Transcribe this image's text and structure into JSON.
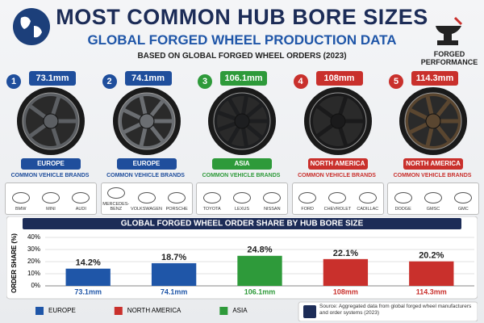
{
  "header": {
    "title": "MOST COMMON HUB BORE SIZES",
    "subtitle": "GLOBAL FORGED WHEEL PRODUCTION DATA",
    "note": "BASED ON GLOBAL FORGED WHEEL ORDERS (2023)",
    "logo": "FORGED PERFORMANCE"
  },
  "wheels": [
    {
      "rank": 1,
      "size": "73.1mm",
      "region": "EUROPE",
      "color": "#1f4e9c",
      "brands_label": "COMMON VEHICLE BRANDS",
      "brands": [
        "BMW",
        "MINI",
        "AUDI"
      ]
    },
    {
      "rank": 2,
      "size": "74.1mm",
      "region": "EUROPE",
      "color": "#1f4e9c",
      "brands_label": "COMMON VEHICLE BRANDS",
      "brands": [
        "MERCEDES-BENZ",
        "VOLKSWAGEN",
        "PORSCHE"
      ]
    },
    {
      "rank": 3,
      "size": "106.1mm",
      "region": "ASIA",
      "color": "#2e9a3a",
      "brands_label": "COMMON VEHICLE BRANDS",
      "brands": [
        "TOYOTA",
        "LEXUS",
        "NISSAN"
      ]
    },
    {
      "rank": 4,
      "size": "108mm",
      "region": "NORTH AMERICA",
      "color": "#c9302c",
      "brands_label": "COMMON VEHICLE BRANDS",
      "brands": [
        "FORD",
        "CHEVROLET",
        "CADILLAC"
      ]
    },
    {
      "rank": 5,
      "size": "114.3mm",
      "region": "NORTH AMERICA",
      "color": "#c9302c",
      "brands_label": "COMMON VEHICLE BRANDS",
      "brands": [
        "DODGE",
        "GMSC",
        "GMC"
      ]
    }
  ],
  "chart_data": {
    "type": "bar",
    "title": "GLOBAL FORGED WHEEL ORDER SHARE BY HUB BORE SIZE",
    "y_label": "ORDER SHARE (%)",
    "categories": [
      "73.1mm",
      "74.1mm",
      "106.1mm",
      "108mm",
      "114.3mm"
    ],
    "values": [
      14.2,
      18.7,
      24.8,
      22.1,
      20.2
    ],
    "value_labels": [
      "14.2%",
      "18.7%",
      "24.8%",
      "22.1%",
      "20.2%"
    ],
    "colors": [
      "#1f56a8",
      "#1f56a8",
      "#2e9a3a",
      "#c9302c",
      "#c9302c"
    ],
    "ylim": [
      0,
      40
    ],
    "yticks": [
      {
        "value": 0,
        "label": "0%"
      },
      {
        "value": 10,
        "label": "10%"
      },
      {
        "value": 20,
        "label": "20%"
      },
      {
        "value": 30,
        "label": "30%"
      },
      {
        "value": 40,
        "label": "40%"
      }
    ],
    "grid": true,
    "legend": [
      {
        "name": "EUROPE",
        "color": "#1f56a8"
      },
      {
        "name": "NORTH AMERICA",
        "color": "#c9302c"
      },
      {
        "name": "ASIA",
        "color": "#2e9a3a"
      }
    ],
    "source": "Source: Aggregated data from global forged wheel manufacturers and order systems (2023)"
  }
}
